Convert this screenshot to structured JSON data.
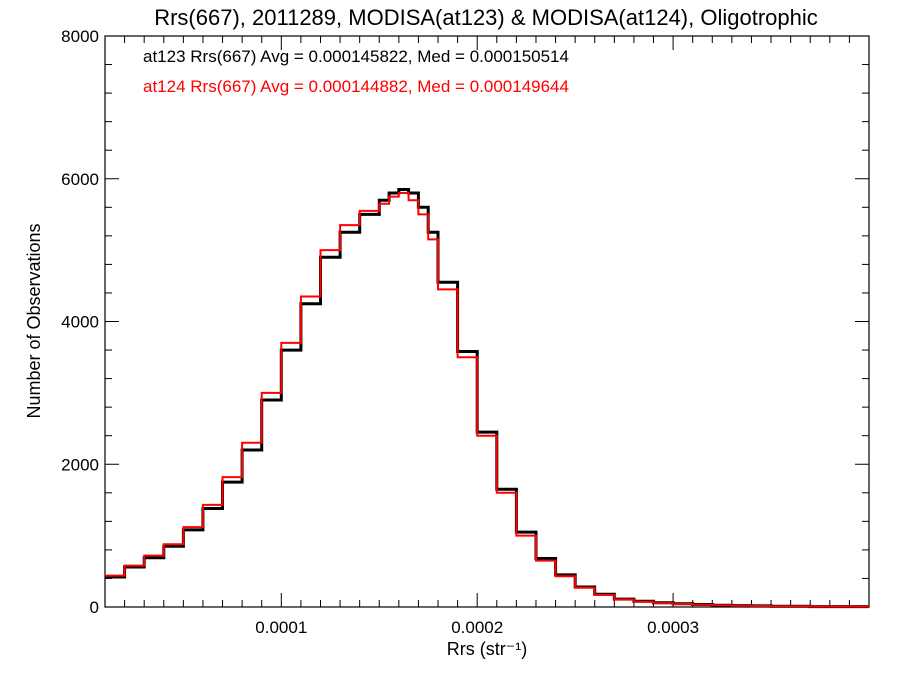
{
  "chart_data": {
    "type": "line",
    "title": "Rrs(667), 2011289, MODISA(at123) & MODISA(at124), Oligotrophic",
    "xlabel": "Rrs (str⁻¹)",
    "ylabel": "Number of Observations",
    "xlim": [
      1e-05,
      0.0004
    ],
    "ylim": [
      0,
      8000
    ],
    "x_ticks": [
      {
        "value": 0.0001,
        "label": "0.0001"
      },
      {
        "value": 0.0002,
        "label": "0.0002"
      },
      {
        "value": 0.0003,
        "label": "0.0003"
      }
    ],
    "y_ticks": [
      {
        "value": 0,
        "label": "0"
      },
      {
        "value": 2000,
        "label": "2000"
      },
      {
        "value": 4000,
        "label": "4000"
      },
      {
        "value": 6000,
        "label": "6000"
      },
      {
        "value": 8000,
        "label": "8000"
      }
    ],
    "grid": false,
    "legend_position": "top-left",
    "step": "histogram",
    "series": [
      {
        "name": "at123",
        "color": "#000000",
        "legend_text": "at123 Rrs(667) Avg = 0.000145822, Med = 0.000150514",
        "x": [
          1e-05,
          2e-05,
          3e-05,
          4e-05,
          5e-05,
          6e-05,
          7e-05,
          8e-05,
          9e-05,
          0.0001,
          0.00011,
          0.00012,
          0.00013,
          0.00014,
          0.00015,
          0.000155,
          0.00016,
          0.000165,
          0.00017,
          0.000175,
          0.00018,
          0.00019,
          0.0002,
          0.00021,
          0.00022,
          0.00023,
          0.00024,
          0.00025,
          0.00026,
          0.00027,
          0.00028,
          0.00029,
          0.0003,
          0.00031,
          0.00032,
          0.00033,
          0.00034,
          0.00035,
          0.00037,
          0.0004
        ],
        "y": [
          420,
          560,
          690,
          850,
          1080,
          1380,
          1750,
          2200,
          2900,
          3600,
          4250,
          4900,
          5250,
          5500,
          5700,
          5800,
          5850,
          5800,
          5600,
          5250,
          4550,
          3580,
          2450,
          1650,
          1050,
          680,
          450,
          280,
          180,
          110,
          80,
          60,
          45,
          35,
          25,
          20,
          15,
          10,
          5,
          5
        ]
      },
      {
        "name": "at124",
        "color": "#ff0000",
        "legend_text": "at124 Rrs(667) Avg = 0.000144882, Med = 0.000149644",
        "x": [
          1e-05,
          2e-05,
          3e-05,
          4e-05,
          5e-05,
          6e-05,
          7e-05,
          8e-05,
          9e-05,
          0.0001,
          0.00011,
          0.00012,
          0.00013,
          0.00014,
          0.00015,
          0.000155,
          0.00016,
          0.000165,
          0.00017,
          0.000175,
          0.00018,
          0.00019,
          0.0002,
          0.00021,
          0.00022,
          0.00023,
          0.00024,
          0.00025,
          0.00026,
          0.00027,
          0.00028,
          0.00029,
          0.0003,
          0.00031,
          0.00032,
          0.00033,
          0.00034,
          0.00035,
          0.00037,
          0.0004
        ],
        "y": [
          440,
          580,
          720,
          880,
          1120,
          1430,
          1820,
          2300,
          3000,
          3700,
          4350,
          5000,
          5350,
          5550,
          5650,
          5750,
          5800,
          5700,
          5500,
          5150,
          4450,
          3500,
          2400,
          1600,
          1000,
          650,
          430,
          270,
          170,
          105,
          75,
          55,
          42,
          32,
          24,
          18,
          14,
          10,
          5,
          5
        ]
      }
    ]
  }
}
